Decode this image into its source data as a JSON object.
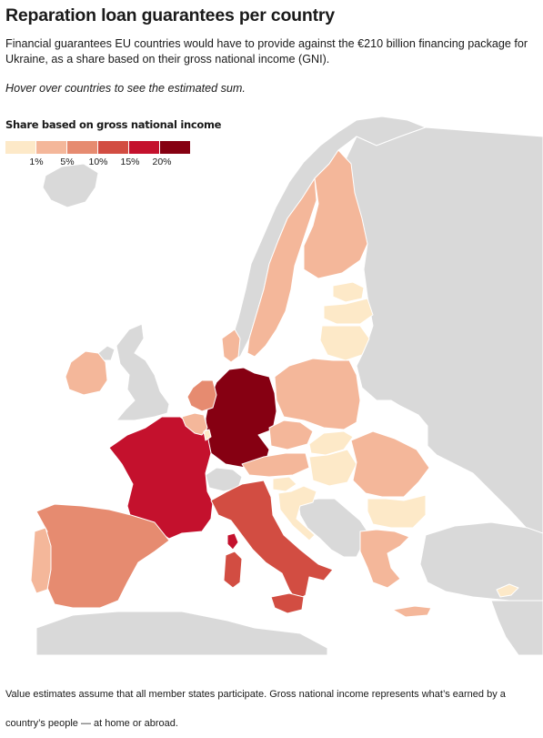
{
  "header": {
    "title": "Reparation loan guarantees per country",
    "subtitle": "Financial guarantees EU countries would have to provide against the €210 billion financing package for Ukraine, as a share based on their gross national income (GNI).",
    "hint": "Hover over countries to see the estimated sum."
  },
  "legend": {
    "title": "Share based on gross national income",
    "colors": [
      "#fde9c8",
      "#f4b79a",
      "#e68b70",
      "#d24d42",
      "#c4112d",
      "#860012"
    ],
    "ticks": [
      "1%",
      "5%",
      "10%",
      "15%",
      "20%"
    ]
  },
  "map": {
    "non_member_color": "#d9d9d9",
    "sea_color": "#ffffff",
    "countries": [
      {
        "name": "Germany",
        "color": "#860012"
      },
      {
        "name": "France",
        "color": "#c4112d"
      },
      {
        "name": "Italy",
        "color": "#d24d42"
      },
      {
        "name": "Spain",
        "color": "#e68b70"
      },
      {
        "name": "Netherlands",
        "color": "#e68b70"
      },
      {
        "name": "Portugal",
        "color": "#f4b79a"
      },
      {
        "name": "Ireland",
        "color": "#f4b79a"
      },
      {
        "name": "Belgium",
        "color": "#f4b79a"
      },
      {
        "name": "Sweden",
        "color": "#f4b79a"
      },
      {
        "name": "Finland",
        "color": "#f4b79a"
      },
      {
        "name": "Denmark",
        "color": "#f4b79a"
      },
      {
        "name": "Poland",
        "color": "#f4b79a"
      },
      {
        "name": "Austria",
        "color": "#f4b79a"
      },
      {
        "name": "Czechia",
        "color": "#f4b79a"
      },
      {
        "name": "Romania",
        "color": "#f4b79a"
      },
      {
        "name": "Greece",
        "color": "#f4b79a"
      },
      {
        "name": "Estonia",
        "color": "#fde9c8"
      },
      {
        "name": "Latvia",
        "color": "#fde9c8"
      },
      {
        "name": "Lithuania",
        "color": "#fde9c8"
      },
      {
        "name": "Slovakia",
        "color": "#fde9c8"
      },
      {
        "name": "Hungary",
        "color": "#fde9c8"
      },
      {
        "name": "Slovenia",
        "color": "#fde9c8"
      },
      {
        "name": "Croatia",
        "color": "#fde9c8"
      },
      {
        "name": "Bulgaria",
        "color": "#fde9c8"
      },
      {
        "name": "Luxembourg",
        "color": "#fde9c8"
      },
      {
        "name": "Cyprus",
        "color": "#fde9c8"
      }
    ]
  },
  "footnote": "Value estimates assume that all member states participate. Gross national income represents what’s earned by a country’s people — at home or abroad."
}
